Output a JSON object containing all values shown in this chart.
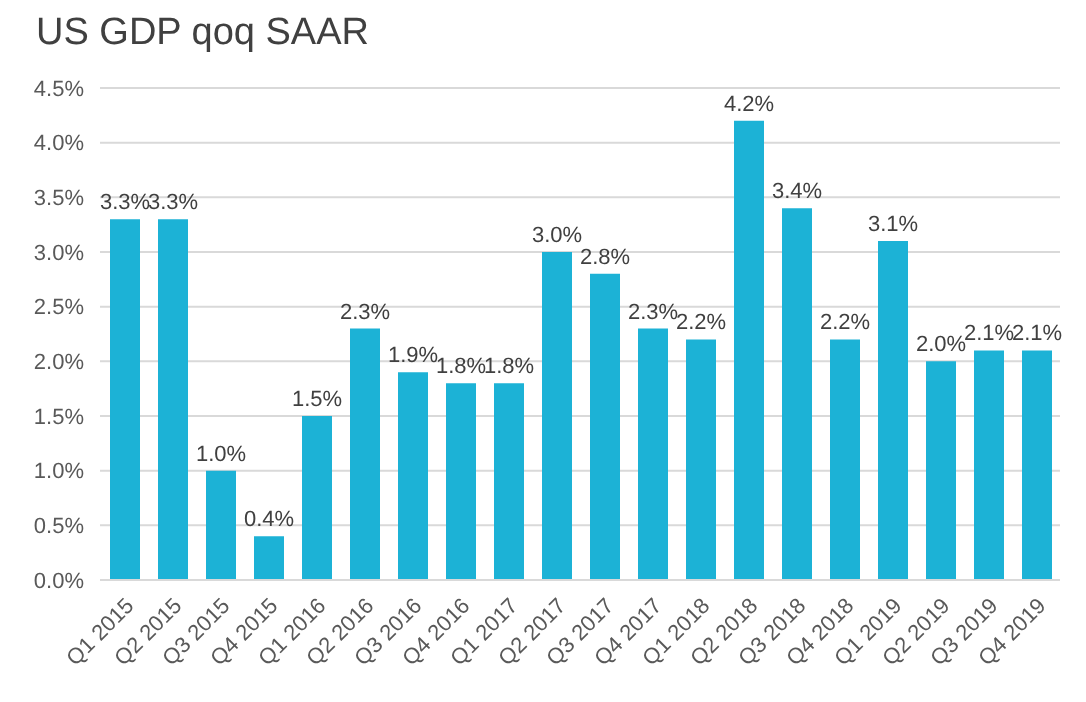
{
  "chart_data": {
    "type": "bar",
    "title": "US GDP qoq SAAR",
    "categories": [
      "Q1 2015",
      "Q2 2015",
      "Q3 2015",
      "Q4 2015",
      "Q1 2016",
      "Q2 2016",
      "Q3 2016",
      "Q4 2016",
      "Q1 2017",
      "Q2 2017",
      "Q3 2017",
      "Q4 2017",
      "Q1 2018",
      "Q2 2018",
      "Q3 2018",
      "Q4 2018",
      "Q1 2019",
      "Q2 2019",
      "Q3 2019",
      "Q4 2019"
    ],
    "values": [
      3.3,
      3.3,
      1.0,
      0.4,
      1.5,
      2.3,
      1.9,
      1.8,
      1.8,
      3.0,
      2.8,
      2.3,
      2.2,
      4.2,
      3.4,
      2.2,
      3.1,
      2.0,
      2.1,
      2.1
    ],
    "value_labels": [
      "3.3%",
      "3.3%",
      "1.0%",
      "0.4%",
      "1.5%",
      "2.3%",
      "1.9%",
      "1.8%",
      "1.8%",
      "3.0%",
      "2.8%",
      "2.3%",
      "2.2%",
      "4.2%",
      "3.4%",
      "2.2%",
      "3.1%",
      "2.0%",
      "2.1%",
      "2.1%"
    ],
    "color": "#1cb2d6",
    "ylim": [
      0,
      4.5
    ],
    "yticks": [
      {
        "value": 0,
        "label": "0.0%"
      },
      {
        "value": 0.5,
        "label": "0.5%"
      },
      {
        "value": 1,
        "label": "1.0%"
      },
      {
        "value": 1.5,
        "label": "1.5%"
      },
      {
        "value": 2,
        "label": "2.0%"
      },
      {
        "value": 2.5,
        "label": "2.5%"
      },
      {
        "value": 3,
        "label": "3.0%"
      },
      {
        "value": 3.5,
        "label": "3.5%"
      },
      {
        "value": 4,
        "label": "4.0%"
      },
      {
        "value": 4.5,
        "label": "4.5%"
      }
    ],
    "grid": "y"
  }
}
